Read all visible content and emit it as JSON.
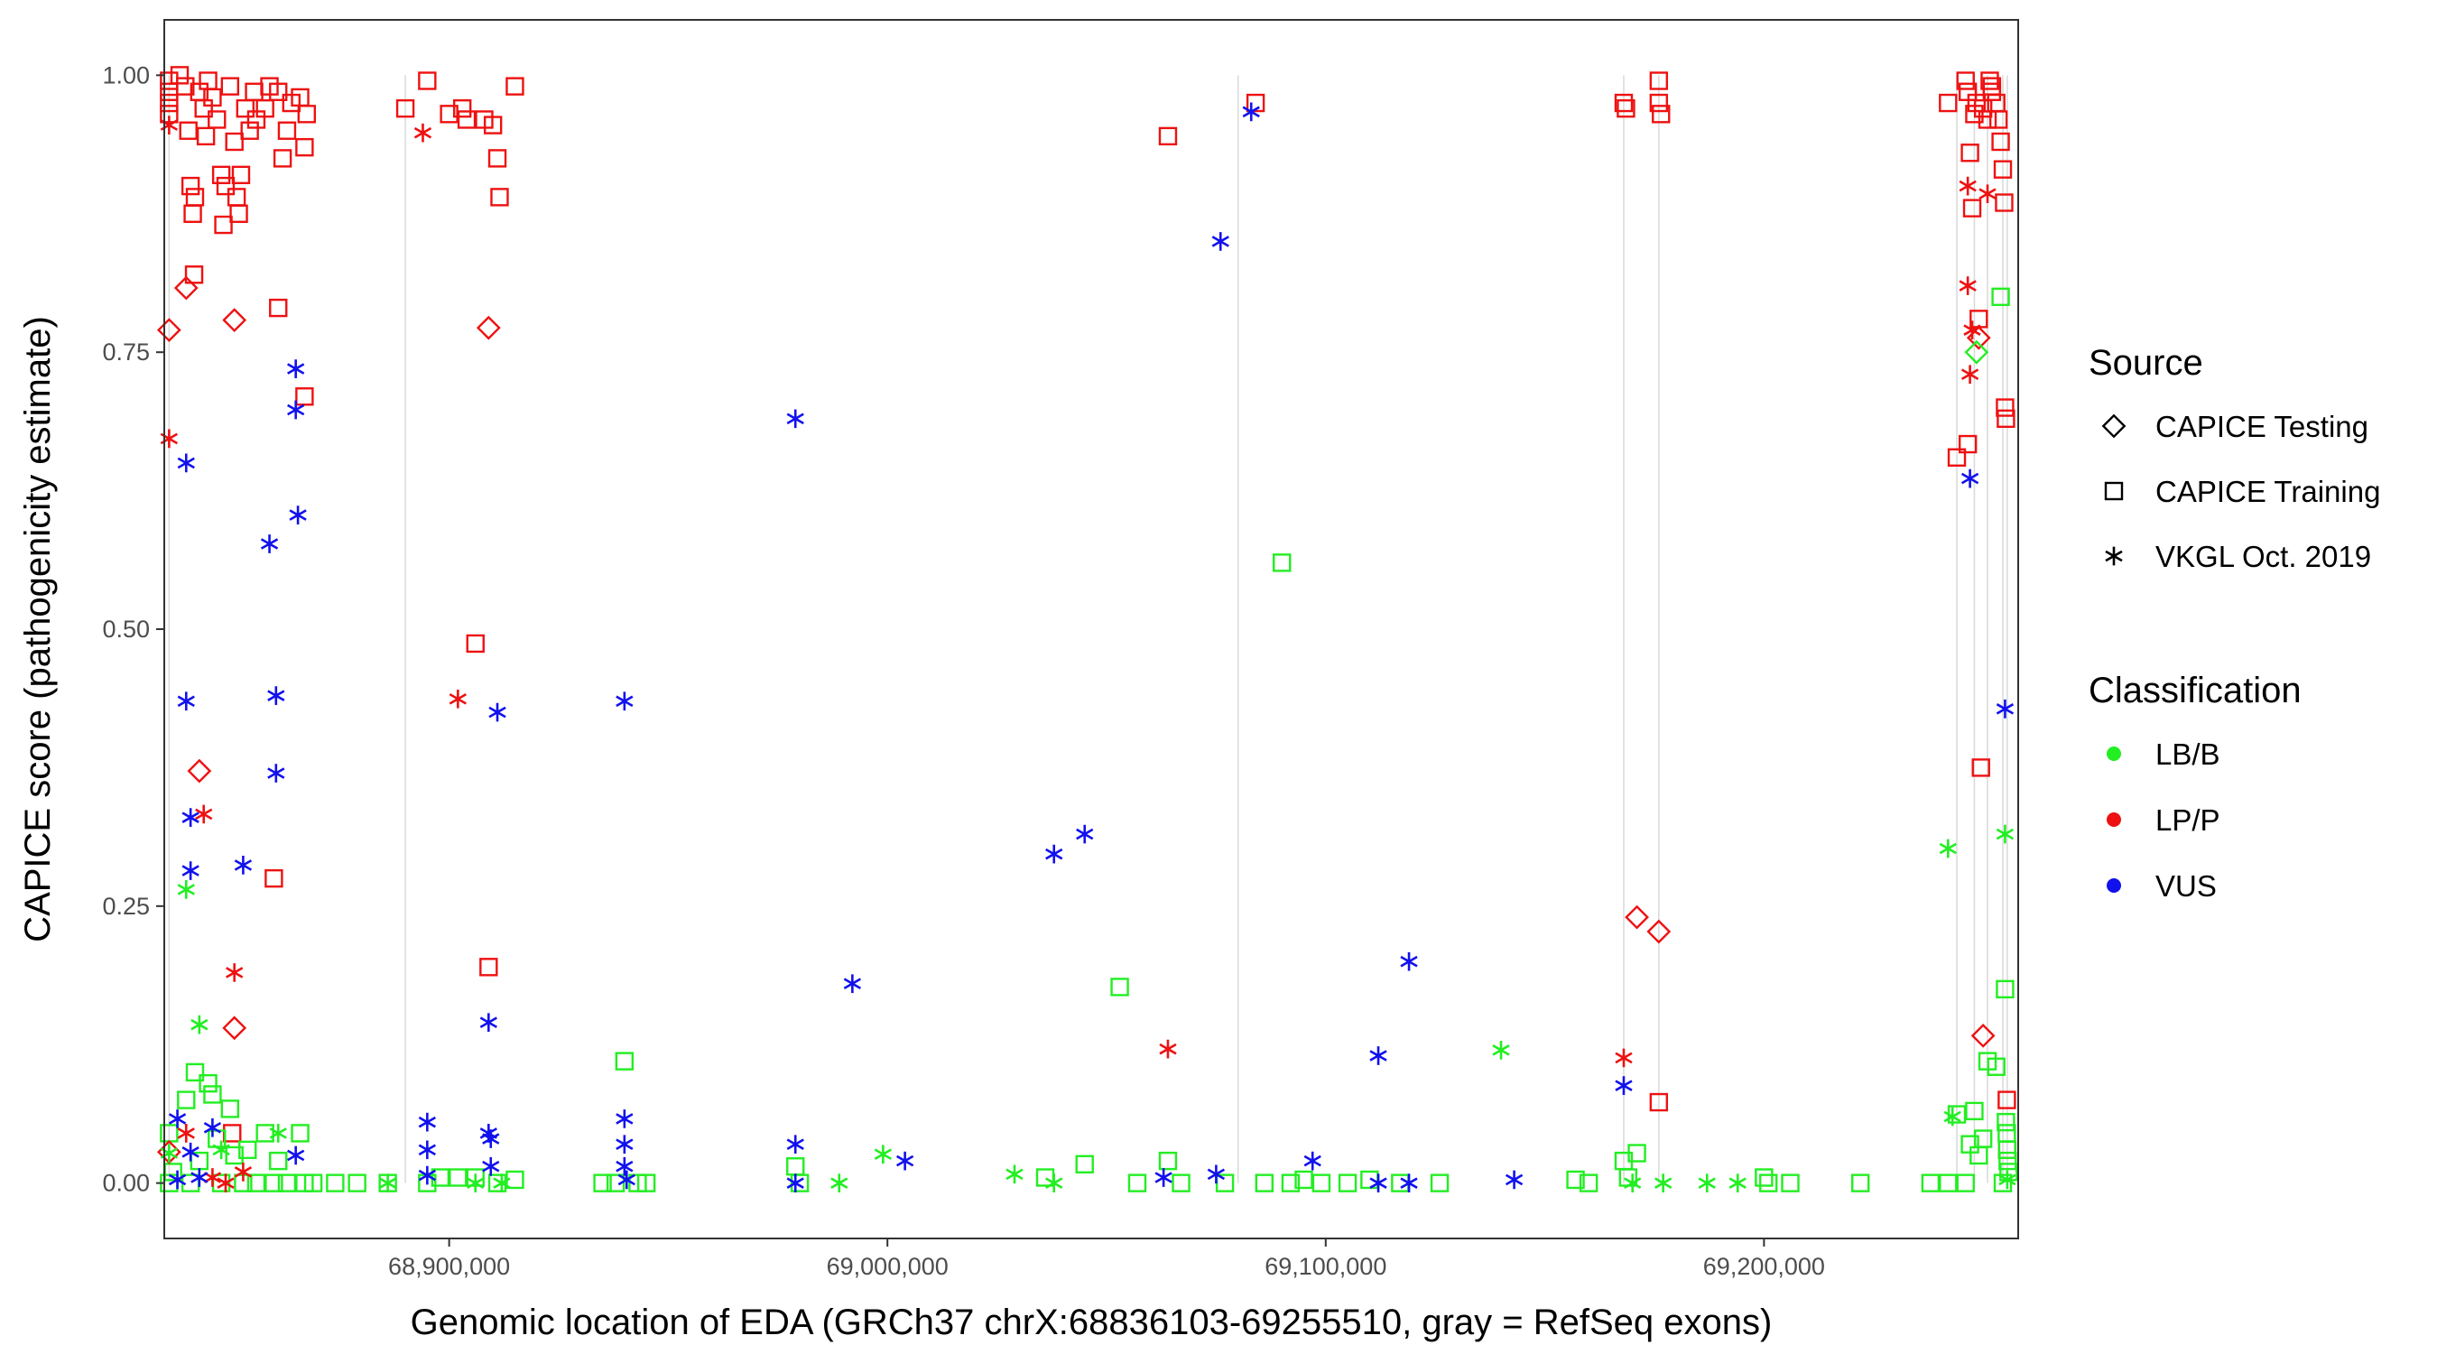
{
  "chart_data": {
    "type": "scatter",
    "xlabel": "Genomic location of EDA (GRCh37 chrX:68836103-69255510, gray = RefSeq exons)",
    "ylabel": "CAPICE score (pathogenicity estimate)",
    "xlim": [
      68835000,
      69258000
    ],
    "ylim": [
      -0.05,
      1.05
    ],
    "x_ticks": [
      68900000,
      69000000,
      69100000,
      69200000
    ],
    "x_tick_labels": [
      "68,900,000",
      "69,000,000",
      "69,100,000",
      "69,200,000"
    ],
    "y_ticks": [
      0,
      0.25,
      0.5,
      0.75,
      1.0
    ],
    "y_tick_labels": [
      "0.00",
      "0.25",
      "0.50",
      "0.75",
      "1.00"
    ],
    "grid": false,
    "exon_lines": [
      68836103,
      68890000,
      69080000,
      69168000,
      69176000,
      69244000,
      69248000,
      69251000,
      69254500,
      69255500
    ],
    "colors": {
      "LB/B": "#22ee22",
      "LP/P": "#ee1111",
      "VUS": "#1111ee",
      "exon": "#d9d9d9",
      "frame": "#333333"
    },
    "legend": {
      "placement": "right",
      "source_title": "Source",
      "source_items": [
        {
          "key": "testing",
          "label": "CAPICE Testing",
          "shape": "diamond"
        },
        {
          "key": "training",
          "label": "CAPICE Training",
          "shape": "square"
        },
        {
          "key": "vkgl",
          "label": "VKGL Oct. 2019",
          "shape": "asterisk"
        }
      ],
      "class_title": "Classification",
      "class_items": [
        {
          "key": "LB/B",
          "label": "LB/B"
        },
        {
          "key": "LP/P",
          "label": "LP/P"
        },
        {
          "key": "VUS",
          "label": "VUS"
        }
      ]
    },
    "series": [
      {
        "source": "training",
        "class": "LP/P",
        "points": [
          [
            68836103,
            0.995
          ],
          [
            68836103,
            0.985
          ],
          [
            68836103,
            0.975
          ],
          [
            68836103,
            0.965
          ],
          [
            68838500,
            1.0
          ],
          [
            68839800,
            0.99
          ],
          [
            68840500,
            0.95
          ],
          [
            68841000,
            0.9
          ],
          [
            68841500,
            0.875
          ],
          [
            68841800,
            0.82
          ],
          [
            68842000,
            0.89
          ],
          [
            68843000,
            0.985
          ],
          [
            68844000,
            0.97
          ],
          [
            68844500,
            0.945
          ],
          [
            68845000,
            0.995
          ],
          [
            68846000,
            0.98
          ],
          [
            68847000,
            0.96
          ],
          [
            68848000,
            0.91
          ],
          [
            68848500,
            0.865
          ],
          [
            68849000,
            0.9
          ],
          [
            68850000,
            0.99
          ],
          [
            68851000,
            0.94
          ],
          [
            68851500,
            0.89
          ],
          [
            68852000,
            0.875
          ],
          [
            68852500,
            0.91
          ],
          [
            68853500,
            0.97
          ],
          [
            68854500,
            0.95
          ],
          [
            68855500,
            0.985
          ],
          [
            68856000,
            0.96
          ],
          [
            68858000,
            0.97
          ],
          [
            68859000,
            0.99
          ],
          [
            68861000,
            0.985
          ],
          [
            68862000,
            0.925
          ],
          [
            68863000,
            0.95
          ],
          [
            68864000,
            0.975
          ],
          [
            68866000,
            0.98
          ],
          [
            68867000,
            0.935
          ],
          [
            68867500,
            0.965
          ],
          [
            68861000,
            0.79
          ],
          [
            68867000,
            0.71
          ],
          [
            68860000,
            0.275
          ],
          [
            68850500,
            0.045
          ],
          [
            68890000,
            0.97
          ],
          [
            68895000,
            0.995
          ],
          [
            68900000,
            0.965
          ],
          [
            68903000,
            0.97
          ],
          [
            68904000,
            0.96
          ],
          [
            68908000,
            0.96
          ],
          [
            68910000,
            0.955
          ],
          [
            68911000,
            0.925
          ],
          [
            68911500,
            0.89
          ],
          [
            68915000,
            0.99
          ],
          [
            68906000,
            0.487
          ],
          [
            68909000,
            0.195
          ],
          [
            69064000,
            0.945
          ],
          [
            69084000,
            0.975
          ],
          [
            69168000,
            0.975
          ],
          [
            69168500,
            0.97
          ],
          [
            69176000,
            0.995
          ],
          [
            69176000,
            0.975
          ],
          [
            69176500,
            0.965
          ],
          [
            69242000,
            0.975
          ],
          [
            69244000,
            0.655
          ],
          [
            69246000,
            0.995
          ],
          [
            69246500,
            0.985
          ],
          [
            69247000,
            0.93
          ],
          [
            69247500,
            0.88
          ],
          [
            69248000,
            0.965
          ],
          [
            69248500,
            0.975
          ],
          [
            69249000,
            0.78
          ],
          [
            69249500,
            0.375
          ],
          [
            69250000,
            0.97
          ],
          [
            69251000,
            0.96
          ],
          [
            69251500,
            0.995
          ],
          [
            69252000,
            0.985
          ],
          [
            69253000,
            0.975
          ],
          [
            69253500,
            0.96
          ],
          [
            69254000,
            0.94
          ],
          [
            69254500,
            0.915
          ],
          [
            69254800,
            0.885
          ],
          [
            69255000,
            0.7
          ],
          [
            69255200,
            0.69
          ],
          [
            69255400,
            0.075
          ],
          [
            69255500,
            0.03
          ],
          [
            69176000,
            0.073
          ],
          [
            69246500,
            0.667
          ],
          [
            69252000,
            0.99
          ]
        ]
      },
      {
        "source": "training",
        "class": "LB/B",
        "points": [
          [
            68836103,
            0.045
          ],
          [
            68836103,
            0.0
          ],
          [
            68837000,
            0.01
          ],
          [
            68840000,
            0.075
          ],
          [
            68841000,
            0.0
          ],
          [
            68842000,
            0.1
          ],
          [
            68843000,
            0.02
          ],
          [
            68845000,
            0.09
          ],
          [
            68846000,
            0.08
          ],
          [
            68847000,
            0.04
          ],
          [
            68848000,
            0.0
          ],
          [
            68850000,
            0.067
          ],
          [
            68851000,
            0.025
          ],
          [
            68853000,
            0.0
          ],
          [
            68854000,
            0.03
          ],
          [
            68856000,
            0.0
          ],
          [
            68858000,
            0.045
          ],
          [
            68860000,
            0.0
          ],
          [
            68861000,
            0.02
          ],
          [
            68863000,
            0.0
          ],
          [
            68866000,
            0.045
          ],
          [
            68867000,
            0.0
          ],
          [
            68869000,
            0.0
          ],
          [
            68874000,
            0.0
          ],
          [
            68879000,
            0.0
          ],
          [
            68886000,
            0.0
          ],
          [
            68895000,
            0.0
          ],
          [
            68898000,
            0.005
          ],
          [
            68902000,
            0.005
          ],
          [
            68906000,
            0.005
          ],
          [
            68911000,
            0.0
          ],
          [
            68915000,
            0.003
          ],
          [
            68935000,
            0.0
          ],
          [
            68938000,
            0.0
          ],
          [
            68940000,
            0.11
          ],
          [
            68943000,
            0.0
          ],
          [
            68945000,
            0.0
          ],
          [
            68979000,
            0.015
          ],
          [
            68980000,
            0.0
          ],
          [
            69036000,
            0.005
          ],
          [
            69045000,
            0.017
          ],
          [
            69053000,
            0.177
          ],
          [
            69057000,
            0.0
          ],
          [
            69064000,
            0.02
          ],
          [
            69067000,
            0.0
          ],
          [
            69077000,
            0.0
          ],
          [
            69086000,
            0.0
          ],
          [
            69090000,
            0.56
          ],
          [
            69092000,
            0.0
          ],
          [
            69095000,
            0.003
          ],
          [
            69099000,
            0.0
          ],
          [
            69105000,
            0.0
          ],
          [
            69110000,
            0.003
          ],
          [
            69117000,
            0.0
          ],
          [
            69126000,
            0.0
          ],
          [
            69157000,
            0.003
          ],
          [
            69160000,
            0.0
          ],
          [
            69168000,
            0.02
          ],
          [
            69169000,
            0.005
          ],
          [
            69171000,
            0.027
          ],
          [
            69200000,
            0.005
          ],
          [
            69201000,
            0.0
          ],
          [
            69206000,
            0.0
          ],
          [
            69222000,
            0.0
          ],
          [
            69238000,
            0.0
          ],
          [
            69242000,
            0.0
          ],
          [
            69244000,
            0.062
          ],
          [
            69246000,
            0.0
          ],
          [
            69247000,
            0.035
          ],
          [
            69248000,
            0.065
          ],
          [
            69249000,
            0.025
          ],
          [
            69250000,
            0.04
          ],
          [
            69251000,
            0.11
          ],
          [
            69253000,
            0.105
          ],
          [
            69254000,
            0.8
          ],
          [
            69254500,
            0.0
          ],
          [
            69255000,
            0.175
          ],
          [
            69255200,
            0.055
          ],
          [
            69255400,
            0.045
          ],
          [
            69255500,
            0.03
          ],
          [
            69255600,
            0.02
          ],
          [
            69255800,
            0.01
          ]
        ]
      },
      {
        "source": "testing",
        "class": "LP/P",
        "points": [
          [
            68836103,
            0.77
          ],
          [
            68840000,
            0.808
          ],
          [
            68843000,
            0.372
          ],
          [
            68851000,
            0.779
          ],
          [
            68851000,
            0.14
          ],
          [
            68909000,
            0.772
          ],
          [
            68836103,
            0.028
          ],
          [
            69171000,
            0.24
          ],
          [
            69176000,
            0.227
          ],
          [
            69249000,
            0.763
          ],
          [
            69250000,
            0.133
          ]
        ]
      },
      {
        "source": "testing",
        "class": "LB/B",
        "points": [
          [
            69248500,
            0.75
          ]
        ]
      },
      {
        "source": "vkgl",
        "class": "LP/P",
        "points": [
          [
            68836103,
            0.955
          ],
          [
            68836103,
            0.672
          ],
          [
            68894000,
            0.948
          ],
          [
            68902000,
            0.437
          ],
          [
            68844000,
            0.333
          ],
          [
            68851000,
            0.19
          ],
          [
            68840000,
            0.045
          ],
          [
            68846000,
            0.005
          ],
          [
            68849000,
            0.0
          ],
          [
            68853000,
            0.01
          ],
          [
            69064000,
            0.121
          ],
          [
            69168000,
            0.113
          ],
          [
            69246500,
            0.9
          ],
          [
            69246500,
            0.81
          ],
          [
            69247000,
            0.73
          ],
          [
            69251000,
            0.893
          ],
          [
            69247500,
            0.77
          ]
        ]
      },
      {
        "source": "vkgl",
        "class": "LB/B",
        "points": [
          [
            68840000,
            0.265
          ],
          [
            68843000,
            0.143
          ],
          [
            68861000,
            0.045
          ],
          [
            68836103,
            0.027
          ],
          [
            68848000,
            0.03
          ],
          [
            68886000,
            0.0
          ],
          [
            68906000,
            0.0
          ],
          [
            68912000,
            0.0
          ],
          [
            68989000,
            0.0
          ],
          [
            68999000,
            0.026
          ],
          [
            69029000,
            0.008
          ],
          [
            69038000,
            0.0
          ],
          [
            69140000,
            0.12
          ],
          [
            69170000,
            0.0
          ],
          [
            69177000,
            0.0
          ],
          [
            69187000,
            0.0
          ],
          [
            69194000,
            0.0
          ],
          [
            69242000,
            0.302
          ],
          [
            69243000,
            0.06
          ],
          [
            69255000,
            0.315
          ],
          [
            69255500,
            0.003
          ]
        ]
      },
      {
        "source": "vkgl",
        "class": "VUS",
        "points": [
          [
            68840000,
            0.65
          ],
          [
            68840000,
            0.435
          ],
          [
            68841000,
            0.33
          ],
          [
            68841000,
            0.282
          ],
          [
            68853000,
            0.287
          ],
          [
            68859000,
            0.577
          ],
          [
            68860500,
            0.44
          ],
          [
            68860500,
            0.37
          ],
          [
            68865000,
            0.735
          ],
          [
            68865000,
            0.698
          ],
          [
            68865500,
            0.603
          ],
          [
            68838000,
            0.058
          ],
          [
            68838000,
            0.003
          ],
          [
            68841000,
            0.028
          ],
          [
            68843000,
            0.005
          ],
          [
            68846000,
            0.05
          ],
          [
            68865000,
            0.025
          ],
          [
            68895000,
            0.055
          ],
          [
            68895000,
            0.03
          ],
          [
            68895000,
            0.007
          ],
          [
            68909000,
            0.145
          ],
          [
            68909000,
            0.045
          ],
          [
            68909500,
            0.04
          ],
          [
            68909500,
            0.015
          ],
          [
            68911000,
            0.425
          ],
          [
            68940000,
            0.435
          ],
          [
            68940000,
            0.058
          ],
          [
            68940000,
            0.035
          ],
          [
            68940000,
            0.015
          ],
          [
            68940500,
            0.003
          ],
          [
            68979000,
            0.69
          ],
          [
            68979000,
            0.035
          ],
          [
            68979000,
            0.0
          ],
          [
            68992000,
            0.18
          ],
          [
            69004000,
            0.02
          ],
          [
            69038000,
            0.297
          ],
          [
            69045000,
            0.315
          ],
          [
            69063000,
            0.005
          ],
          [
            69076000,
            0.85
          ],
          [
            69083000,
            0.967
          ],
          [
            69075000,
            0.008
          ],
          [
            69097000,
            0.02
          ],
          [
            69112000,
            0.115
          ],
          [
            69112000,
            0.0
          ],
          [
            69119000,
            0.2
          ],
          [
            69119000,
            0.0
          ],
          [
            69143000,
            0.003
          ],
          [
            69168000,
            0.088
          ],
          [
            69247000,
            0.636
          ],
          [
            69255000,
            0.428
          ]
        ]
      }
    ]
  }
}
